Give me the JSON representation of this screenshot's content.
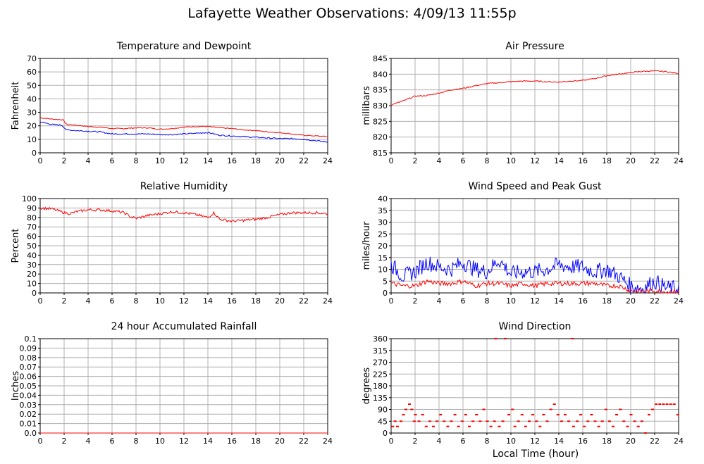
{
  "page": {
    "title": "Lafayette Weather Observations: 4/09/13 11:55p",
    "xlabel": "Local Time (hour)"
  },
  "colors": {
    "red": "#ff0000",
    "blue": "#0000ff",
    "grid": "#b0b0b0",
    "axis": "#000000"
  },
  "chart_data": [
    {
      "id": "temp",
      "type": "line",
      "title": "Temperature and Dewpoint",
      "xlabel": "",
      "ylabel": "Fahrenheit",
      "xlim": [
        0,
        24
      ],
      "ylim": [
        0,
        70
      ],
      "yticks": [
        0,
        10,
        20,
        30,
        40,
        50,
        60,
        70
      ],
      "xticks": [
        0,
        2,
        4,
        6,
        8,
        10,
        12,
        14,
        16,
        18,
        20,
        22,
        24
      ],
      "grid": true,
      "series": [
        {
          "color": "#ff0000",
          "x": [
            0,
            1,
            1.9,
            2.2,
            3,
            4,
            5,
            6,
            7,
            8,
            9,
            10,
            11,
            12,
            13,
            14,
            15,
            16,
            17,
            18,
            19,
            20,
            21,
            22,
            23,
            24
          ],
          "y": [
            26,
            25,
            24.5,
            21,
            20.5,
            19.5,
            19,
            18,
            18,
            18.5,
            18.5,
            17.5,
            18,
            19,
            19.5,
            19.5,
            18.5,
            18,
            17,
            16.5,
            15.5,
            15,
            14,
            13,
            12.5,
            12
          ]
        },
        {
          "color": "#0000ff",
          "x": [
            0,
            1,
            1.8,
            2.2,
            3,
            4,
            5,
            6,
            7,
            8,
            9,
            10,
            11,
            12,
            13,
            14,
            15,
            16,
            17,
            18,
            19,
            20,
            21,
            22,
            23,
            24
          ],
          "y": [
            23,
            21,
            20.5,
            17,
            16.5,
            16,
            15.5,
            14,
            14,
            14,
            14,
            13.5,
            13.5,
            14,
            14.5,
            15,
            13,
            12.5,
            12,
            11.5,
            11,
            10.5,
            10.5,
            10,
            9,
            8
          ]
        }
      ]
    },
    {
      "id": "pressure",
      "type": "line",
      "title": "Air Pressure",
      "xlabel": "",
      "ylabel": "millibars",
      "xlim": [
        0,
        24
      ],
      "ylim": [
        815,
        845
      ],
      "yticks": [
        815,
        820,
        825,
        830,
        835,
        840,
        845
      ],
      "xticks": [
        0,
        2,
        4,
        6,
        8,
        10,
        12,
        14,
        16,
        18,
        20,
        22,
        24
      ],
      "grid": true,
      "series": [
        {
          "color": "#ff0000",
          "x": [
            0,
            1,
            2,
            3,
            4,
            5,
            6,
            7,
            8,
            9,
            10,
            11,
            12,
            13,
            14,
            15,
            16,
            17,
            18,
            19,
            20,
            21,
            22,
            23,
            24
          ],
          "y": [
            830.2,
            831.5,
            833,
            833.2,
            834,
            835,
            835.5,
            836.3,
            837,
            837.3,
            837.6,
            837.8,
            837.8,
            837.6,
            837.5,
            837.8,
            838,
            838.6,
            839.5,
            840,
            840.5,
            840.9,
            841,
            840.8,
            840.2
          ]
        }
      ]
    },
    {
      "id": "humidity",
      "type": "line",
      "title": "Relative Humidity",
      "xlabel": "",
      "ylabel": "Percent",
      "xlim": [
        0,
        24
      ],
      "ylim": [
        0,
        100
      ],
      "yticks": [
        0,
        10,
        20,
        30,
        40,
        50,
        60,
        70,
        80,
        90,
        100
      ],
      "xticks": [
        0,
        2,
        4,
        6,
        8,
        10,
        12,
        14,
        16,
        18,
        20,
        22,
        24
      ],
      "grid": true,
      "series": [
        {
          "color": "#ff0000",
          "x": [
            0,
            1,
            2,
            2.5,
            3,
            4,
            5,
            6,
            7,
            7.5,
            8,
            9,
            10,
            11,
            12,
            13,
            14,
            14.5,
            15,
            16,
            17,
            18,
            19,
            20,
            21,
            22,
            23,
            24
          ],
          "y": [
            90,
            89,
            85,
            84,
            86,
            88,
            88,
            87,
            85,
            81,
            79,
            82,
            84,
            86,
            85,
            83,
            80,
            85,
            78,
            76,
            77,
            78,
            80,
            83,
            85,
            85,
            85,
            84
          ]
        }
      ]
    },
    {
      "id": "wind",
      "type": "line",
      "title": "Wind Speed and Peak Gust",
      "xlabel": "",
      "ylabel": "miles/hour",
      "xlim": [
        0,
        24
      ],
      "ylim": [
        0,
        40
      ],
      "yticks": [
        0,
        5,
        10,
        15,
        20,
        25,
        30,
        35,
        40
      ],
      "xticks": [
        0,
        2,
        4,
        6,
        8,
        10,
        12,
        14,
        16,
        18,
        20,
        22,
        24
      ],
      "grid": true,
      "series": [
        {
          "color": "#0000ff",
          "x": [
            0,
            1,
            2,
            3,
            4,
            5,
            6,
            7,
            8,
            9,
            10,
            11,
            12,
            13,
            14,
            15,
            16,
            17,
            18,
            19,
            20,
            21,
            22,
            23,
            24
          ],
          "y": [
            12,
            7,
            9,
            13,
            11,
            10,
            13,
            10,
            9,
            14,
            8,
            9,
            9,
            10,
            12,
            11,
            11,
            9,
            10,
            7,
            3,
            2,
            5,
            2,
            2
          ]
        },
        {
          "color": "#ff0000",
          "x": [
            0,
            1,
            2,
            3,
            4,
            5,
            6,
            7,
            8,
            9,
            10,
            11,
            12,
            13,
            14,
            15,
            16,
            17,
            18,
            19,
            20,
            21,
            22,
            23,
            24
          ],
          "y": [
            4,
            3,
            3,
            5,
            4,
            4,
            5,
            3,
            4,
            4,
            3,
            4,
            3,
            4,
            4,
            4,
            4,
            4,
            3,
            3,
            1,
            0.5,
            1,
            0.5,
            0.5
          ]
        }
      ]
    },
    {
      "id": "rain",
      "type": "line",
      "title": "24 hour Accumulated Rainfall",
      "xlabel": "",
      "ylabel": "Inches",
      "xlim": [
        0,
        24
      ],
      "ylim": [
        0,
        0.1
      ],
      "yticks": [
        0,
        0.01,
        0.02,
        0.03,
        0.04,
        0.05,
        0.06,
        0.07,
        0.08,
        0.09,
        0.1
      ],
      "ytick_labels": [
        "0.0",
        "0.01",
        "0.02",
        "0.03",
        "0.04",
        "0.05",
        "0.06",
        "0.07",
        "0.08",
        "0.09",
        "0.1"
      ],
      "xticks": [
        0,
        2,
        4,
        6,
        8,
        10,
        12,
        14,
        16,
        18,
        20,
        22,
        24
      ],
      "grid": true,
      "series": [
        {
          "color": "#ff0000",
          "x": [
            0,
            24
          ],
          "y": [
            0,
            0
          ]
        }
      ]
    },
    {
      "id": "direction",
      "type": "scatter",
      "title": "Wind Direction",
      "xlabel": "Local Time (hour)",
      "ylabel": "degrees",
      "xlim": [
        0,
        24
      ],
      "ylim": [
        0,
        360
      ],
      "yticks": [
        0,
        45,
        90,
        135,
        180,
        225,
        270,
        315,
        360
      ],
      "xticks": [
        0,
        2,
        4,
        6,
        8,
        10,
        12,
        14,
        16,
        18,
        20,
        22,
        24
      ],
      "grid": true,
      "series": [
        {
          "color": "#ff0000",
          "x": [
            0.1,
            0.3,
            0.5,
            0.8,
            1.0,
            1.2,
            1.5,
            1.7,
            1.9,
            2.0,
            2.3,
            2.6,
            2.9,
            3.2,
            3.5,
            3.8,
            4.1,
            4.4,
            4.7,
            5.0,
            5.3,
            5.6,
            5.9,
            6.2,
            6.5,
            6.8,
            7.1,
            7.4,
            7.7,
            8.0,
            8.3,
            8.6,
            8.7,
            9.0,
            9.3,
            9.5,
            9.8,
            10.1,
            10.3,
            10.6,
            10.9,
            11.2,
            11.5,
            11.8,
            12.1,
            12.4,
            12.7,
            13.0,
            13.3,
            13.6,
            13.9,
            14.2,
            14.5,
            14.8,
            15.1,
            15.2,
            15.5,
            15.8,
            16.1,
            16.4,
            16.7,
            17.0,
            17.3,
            17.6,
            17.9,
            18.2,
            18.5,
            18.8,
            19.1,
            19.4,
            19.7,
            20.0,
            20.3,
            20.6,
            20.9,
            21.2,
            21.5,
            21.8,
            22.1,
            22.4,
            22.7,
            23.0,
            23.3,
            23.6,
            23.9
          ],
          "y": [
            25,
            45,
            25,
            45,
            70,
            90,
            110,
            90,
            45,
            70,
            45,
            70,
            25,
            45,
            25,
            45,
            70,
            45,
            25,
            45,
            70,
            25,
            45,
            70,
            25,
            45,
            70,
            45,
            90,
            45,
            25,
            45,
            360,
            25,
            45,
            360,
            70,
            90,
            25,
            45,
            70,
            25,
            45,
            70,
            45,
            25,
            70,
            45,
            90,
            110,
            70,
            45,
            70,
            45,
            360,
            25,
            45,
            70,
            25,
            45,
            70,
            45,
            25,
            45,
            90,
            45,
            25,
            70,
            90,
            45,
            25,
            70,
            45,
            25,
            45,
            0,
            70,
            90,
            110,
            110,
            110,
            110,
            110,
            110,
            70
          ]
        }
      ]
    }
  ]
}
